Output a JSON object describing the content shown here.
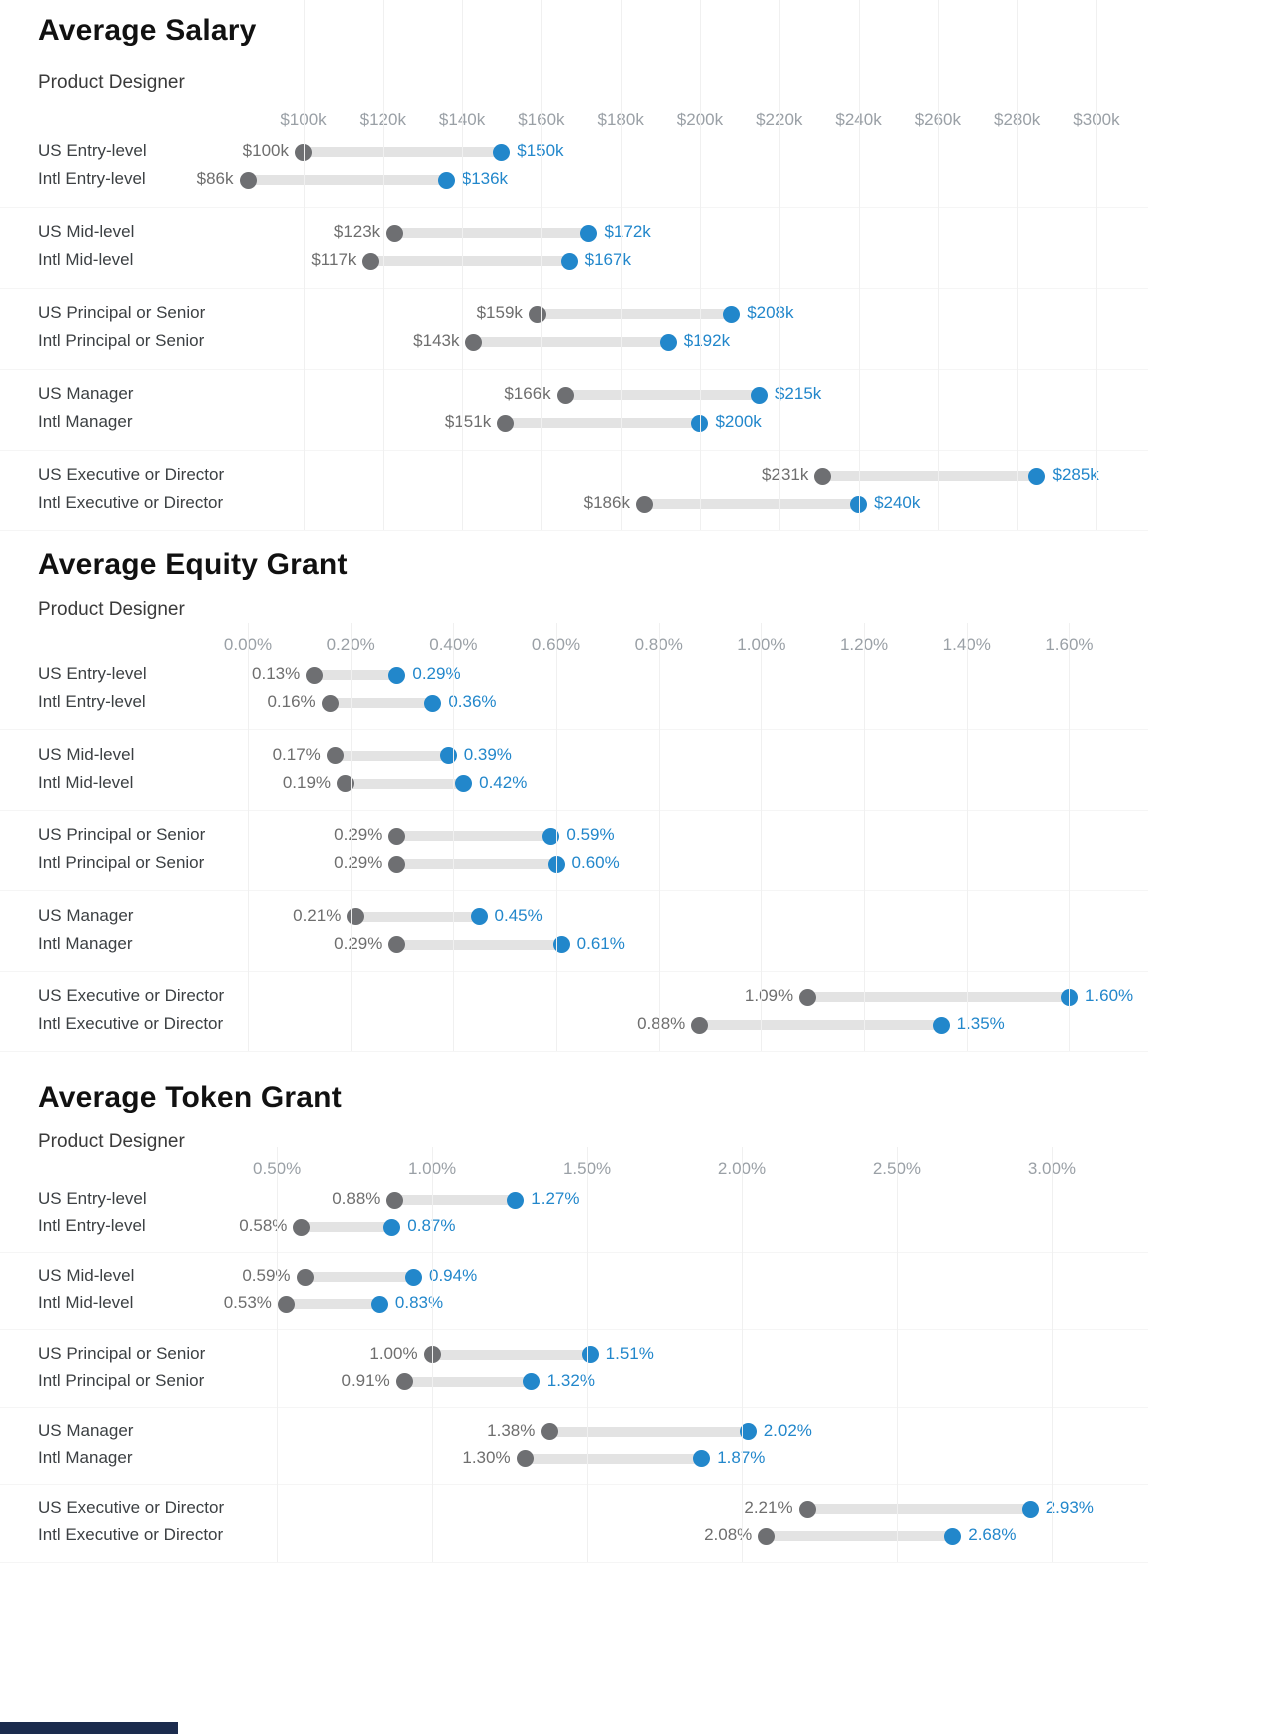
{
  "page": {
    "footer_bar_color": "#1b2b4d"
  },
  "colors": {
    "min_dot": "#6e6f72",
    "max_dot": "#2287cb",
    "bar": "#e3e3e3",
    "vgrid": "#f0f0f0",
    "hgrid": "#f5f5f5",
    "tick_label": "#9aa0a6",
    "row_label": "#3c4043",
    "min_value_label": "#6e6e6e",
    "max_value_label": "#2287cb",
    "title": "#111111",
    "subtitle": "#3a3a3a"
  },
  "chart_data": [
    {
      "type": "dumbbell",
      "title": "Average Salary",
      "subtitle": "Product Designer",
      "xlabel": "",
      "ylabel": "",
      "legend": null,
      "axis": {
        "range": [
          86,
          313
        ],
        "ticks": [
          {
            "value": 100,
            "label": "$100k"
          },
          {
            "value": 120,
            "label": "$120k"
          },
          {
            "value": 140,
            "label": "$140k"
          },
          {
            "value": 160,
            "label": "$160k"
          },
          {
            "value": 180,
            "label": "$180k"
          },
          {
            "value": 200,
            "label": "$200k"
          },
          {
            "value": 220,
            "label": "$220k"
          },
          {
            "value": 240,
            "label": "$240k"
          },
          {
            "value": 260,
            "label": "$260k"
          },
          {
            "value": 280,
            "label": "$280k"
          },
          {
            "value": 300,
            "label": "$300k"
          }
        ]
      },
      "rows": [
        {
          "label": "US Entry-level",
          "min_value": 100,
          "min_label": "$100k",
          "max_value": 150,
          "max_label": "$150k"
        },
        {
          "label": "Intl Entry-level",
          "min_value": 86,
          "min_label": "$86k",
          "max_value": 136,
          "max_label": "$136k"
        },
        {
          "label": "US Mid-level",
          "min_value": 123,
          "min_label": "$123k",
          "max_value": 172,
          "max_label": "$172k"
        },
        {
          "label": "Intl Mid-level",
          "min_value": 117,
          "min_label": "$117k",
          "max_value": 167,
          "max_label": "$167k"
        },
        {
          "label": "US Principal or Senior",
          "min_value": 159,
          "min_label": "$159k",
          "max_value": 208,
          "max_label": "$208k"
        },
        {
          "label": "Intl Principal or Senior",
          "min_value": 143,
          "min_label": "$143k",
          "max_value": 192,
          "max_label": "$192k"
        },
        {
          "label": "US Manager",
          "min_value": 166,
          "min_label": "$166k",
          "max_value": 215,
          "max_label": "$215k"
        },
        {
          "label": "Intl Manager",
          "min_value": 151,
          "min_label": "$151k",
          "max_value": 200,
          "max_label": "$200k"
        },
        {
          "label": "US Executive or Director",
          "min_value": 231,
          "min_label": "$231k",
          "max_value": 285,
          "max_label": "$285k"
        },
        {
          "label": "Intl Executive or Director",
          "min_value": 186,
          "min_label": "$186k",
          "max_value": 240,
          "max_label": "$240k"
        }
      ]
    },
    {
      "type": "dumbbell",
      "title": "Average Equity Grant",
      "subtitle": "Product Designer",
      "xlabel": "",
      "ylabel": "",
      "legend": null,
      "axis": {
        "range": [
          0.0,
          1.753
        ],
        "ticks": [
          {
            "value": 0.0,
            "label": "0.00%"
          },
          {
            "value": 0.2,
            "label": "0.20%"
          },
          {
            "value": 0.4,
            "label": "0.40%"
          },
          {
            "value": 0.6,
            "label": "0.60%"
          },
          {
            "value": 0.8,
            "label": "0.80%"
          },
          {
            "value": 1.0,
            "label": "1.00%"
          },
          {
            "value": 1.2,
            "label": "1.20%"
          },
          {
            "value": 1.4,
            "label": "1.40%"
          },
          {
            "value": 1.6,
            "label": "1.60%"
          }
        ]
      },
      "rows": [
        {
          "label": "US Entry-level",
          "min_value": 0.13,
          "min_label": "0.13%",
          "max_value": 0.29,
          "max_label": "0.29%"
        },
        {
          "label": "Intl Entry-level",
          "min_value": 0.16,
          "min_label": "0.16%",
          "max_value": 0.36,
          "max_label": "0.36%"
        },
        {
          "label": "US Mid-level",
          "min_value": 0.17,
          "min_label": "0.17%",
          "max_value": 0.39,
          "max_label": "0.39%"
        },
        {
          "label": "Intl Mid-level",
          "min_value": 0.19,
          "min_label": "0.19%",
          "max_value": 0.42,
          "max_label": "0.42%"
        },
        {
          "label": "US Principal or Senior",
          "min_value": 0.29,
          "min_label": "0.29%",
          "max_value": 0.59,
          "max_label": "0.59%"
        },
        {
          "label": "Intl Principal or Senior",
          "min_value": 0.29,
          "min_label": "0.29%",
          "max_value": 0.6,
          "max_label": "0.60%"
        },
        {
          "label": "US Manager",
          "min_value": 0.21,
          "min_label": "0.21%",
          "max_value": 0.45,
          "max_label": "0.45%"
        },
        {
          "label": "Intl Manager",
          "min_value": 0.29,
          "min_label": "0.29%",
          "max_value": 0.61,
          "max_label": "0.61%"
        },
        {
          "label": "US Executive or Director",
          "min_value": 1.09,
          "min_label": "1.09%",
          "max_value": 1.6,
          "max_label": "1.60%"
        },
        {
          "label": "Intl Executive or Director",
          "min_value": 0.88,
          "min_label": "0.88%",
          "max_value": 1.35,
          "max_label": "1.35%"
        }
      ]
    },
    {
      "type": "dumbbell",
      "title": "Average Token Grant",
      "subtitle": "Product Designer",
      "xlabel": "",
      "ylabel": "",
      "legend": null,
      "axis": {
        "range": [
          0.406,
          3.31
        ],
        "ticks": [
          {
            "value": 0.5,
            "label": "0.50%"
          },
          {
            "value": 1.0,
            "label": "1.00%"
          },
          {
            "value": 1.5,
            "label": "1.50%"
          },
          {
            "value": 2.0,
            "label": "2.00%"
          },
          {
            "value": 2.5,
            "label": "2.50%"
          },
          {
            "value": 3.0,
            "label": "3.00%"
          }
        ]
      },
      "rows": [
        {
          "label": "US Entry-level",
          "min_value": 0.88,
          "min_label": "0.88%",
          "max_value": 1.27,
          "max_label": "1.27%"
        },
        {
          "label": "Intl Entry-level",
          "min_value": 0.58,
          "min_label": "0.58%",
          "max_value": 0.87,
          "max_label": "0.87%"
        },
        {
          "label": "US Mid-level",
          "min_value": 0.59,
          "min_label": "0.59%",
          "max_value": 0.94,
          "max_label": "0.94%"
        },
        {
          "label": "Intl Mid-level",
          "min_value": 0.53,
          "min_label": "0.53%",
          "max_value": 0.83,
          "max_label": "0.83%"
        },
        {
          "label": "US Principal or Senior",
          "min_value": 1.0,
          "min_label": "1.00%",
          "max_value": 1.51,
          "max_label": "1.51%"
        },
        {
          "label": "Intl Principal or Senior",
          "min_value": 0.91,
          "min_label": "0.91%",
          "max_value": 1.32,
          "max_label": "1.32%"
        },
        {
          "label": "US Manager",
          "min_value": 1.38,
          "min_label": "1.38%",
          "max_value": 2.02,
          "max_label": "2.02%"
        },
        {
          "label": "Intl Manager",
          "min_value": 1.3,
          "min_label": "1.30%",
          "max_value": 1.87,
          "max_label": "1.87%"
        },
        {
          "label": "US Executive or Director",
          "min_value": 2.21,
          "min_label": "2.21%",
          "max_value": 2.93,
          "max_label": "2.93%"
        },
        {
          "label": "Intl Executive or Director",
          "min_value": 2.08,
          "min_label": "2.08%",
          "max_value": 2.68,
          "max_label": "2.68%"
        }
      ]
    }
  ]
}
